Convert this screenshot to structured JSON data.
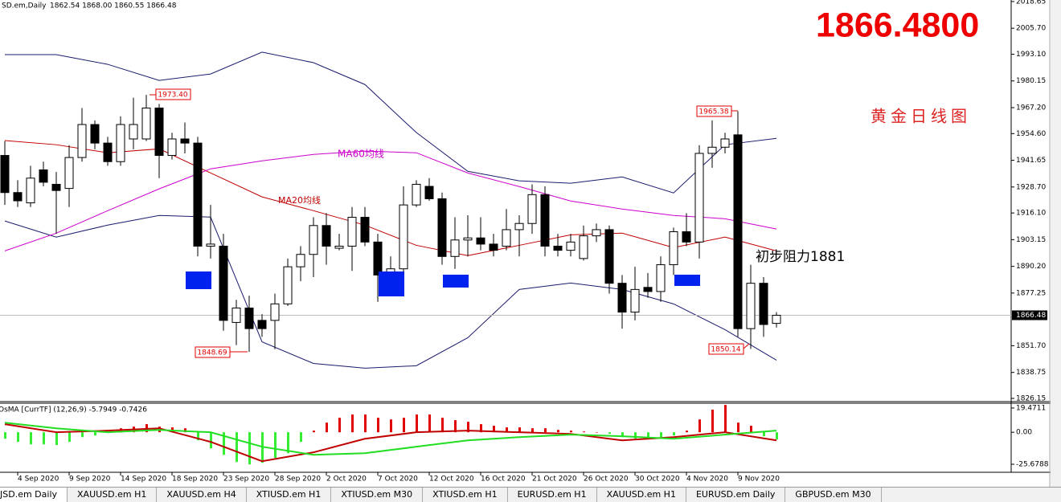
{
  "header": {
    "symbol": "SD.em,Daily",
    "ohlc": "1862.54 1868.00 1860.55 1866.48",
    "big_price": "1866.4800"
  },
  "texts": {
    "title_cn": "黄金日线图",
    "resistance": "初步阻力1881"
  },
  "chart_data": [
    {
      "type": "candlestick",
      "categories": [
        null,
        "4 Sep 2020",
        null,
        null,
        null,
        "9 Sep 2020",
        null,
        null,
        null,
        "14 Sep 2020",
        null,
        null,
        null,
        "18 Sep 2020",
        null,
        null,
        null,
        "23 Sep 2020",
        null,
        null,
        null,
        "28 Sep 2020",
        null,
        null,
        null,
        "2 Oct 2020",
        null,
        null,
        null,
        "7 Oct 2020",
        null,
        null,
        null,
        "12 Oct 2020",
        null,
        null,
        null,
        "16 Oct 2020",
        null,
        null,
        null,
        "21 Oct 2020",
        null,
        null,
        null,
        "26 Oct 2020",
        null,
        null,
        null,
        "30 Oct 2020",
        null,
        null,
        null,
        "4 Nov 2020",
        null,
        null,
        null,
        "9 Nov 2020",
        null,
        null,
        null
      ],
      "open": [
        1944,
        1926,
        1921,
        1937,
        1930,
        1928,
        1943,
        1959,
        1950,
        1941,
        1952,
        1952,
        1967,
        1944,
        1952,
        1950,
        1900,
        1900,
        1863,
        1870,
        1864,
        1864,
        1872,
        1890,
        1896,
        1910,
        1899,
        1900,
        1914,
        1902,
        1886,
        1889,
        1920,
        1929,
        1923,
        1895,
        1903,
        1904,
        1901,
        1900,
        1908,
        1911,
        1925,
        1900,
        1898,
        1894,
        1905,
        1908,
        1882,
        1868,
        1880,
        1878,
        1891,
        1907,
        1902,
        1945,
        1948,
        1954,
        1860,
        1882,
        1862.54
      ],
      "high": [
        1951,
        1932,
        1939,
        1941,
        1936,
        1949,
        1967,
        1961,
        1953,
        1963,
        1972,
        1973.4,
        1969,
        1955,
        1960,
        1953,
        1920,
        1906,
        1874,
        1876,
        1867,
        1877,
        1894,
        1900,
        1914,
        1916,
        1906,
        1919,
        1919,
        1906,
        1895,
        1929,
        1932,
        1933,
        1926,
        1914,
        1915,
        1914,
        1906,
        1918,
        1915,
        1930,
        1929,
        1906,
        1906,
        1910,
        1911,
        1910,
        1886,
        1890,
        1887,
        1895,
        1909,
        1916,
        1949,
        1961,
        1955,
        1965.38,
        1891,
        1885,
        1868
      ],
      "low": [
        1920,
        1919,
        1919,
        1929,
        1906,
        1919,
        1941,
        1947,
        1939,
        1939,
        1947,
        1951,
        1933,
        1942,
        1945,
        1895,
        1894,
        1859,
        1852,
        1848.69,
        1856,
        1850,
        1871,
        1883,
        1885,
        1891,
        1898,
        1888,
        1900,
        1873,
        1880,
        1884,
        1919,
        1922,
        1891,
        1889,
        1895,
        1898,
        1895,
        1898,
        1895,
        1906,
        1895,
        1895,
        1895,
        1893,
        1902,
        1877,
        1860,
        1864,
        1875,
        1873,
        1886,
        1900,
        1894,
        1938,
        1945,
        1856,
        1850.14,
        1856,
        1860.55
      ],
      "close": [
        1926,
        1922,
        1933,
        1931,
        1927,
        1943,
        1959,
        1950,
        1941,
        1959,
        1959,
        1967,
        1944,
        1952,
        1950,
        1900,
        1901,
        1864,
        1870,
        1860,
        1860,
        1872,
        1890,
        1896,
        1910,
        1900,
        1900,
        1914,
        1902,
        1886,
        1889,
        1920,
        1930,
        1923,
        1895,
        1903,
        1904,
        1901,
        1898,
        1908,
        1911,
        1925,
        1900,
        1898,
        1902,
        1905,
        1908,
        1882,
        1868,
        1879,
        1878,
        1891,
        1907,
        1902,
        1945,
        1948,
        1952,
        1860,
        1882,
        1862,
        1866.48
      ],
      "lines": [
        {
          "color": "#1a1a6e",
          "x": [
            0,
            4,
            8,
            12,
            16,
            20,
            24,
            28,
            32,
            36,
            40,
            44,
            48,
            52,
            56,
            60
          ],
          "values": [
            1992.9,
            1992.9,
            1988.2,
            1980.4,
            1983.5,
            1994.1,
            1989.0,
            1978.4,
            1955.1,
            1936.3,
            1931.7,
            1930.5,
            1933.6,
            1925.8,
            1949.2,
            1952.3
          ]
        },
        {
          "color": "#1a1a6e",
          "x": [
            0,
            4,
            8,
            12,
            16,
            20,
            24,
            28,
            32,
            36,
            40,
            44,
            48,
            52,
            56,
            60
          ],
          "values": [
            1912.2,
            1904.4,
            1910.2,
            1914.9,
            1914.1,
            1853.6,
            1843.1,
            1840.8,
            1842.0,
            1855.6,
            1879.0,
            1882.1,
            1879.0,
            1872.0,
            1859.5,
            1844.7
          ]
        },
        {
          "label": "MA20均线",
          "color": "#c00000",
          "x": [
            0,
            4,
            8,
            12,
            16,
            20,
            24,
            28,
            32,
            36,
            40,
            44,
            48,
            52,
            56,
            60
          ],
          "values": [
            1951.2,
            1949.2,
            1945.3,
            1947.2,
            1935.5,
            1923.9,
            1917.2,
            1910.2,
            1900.4,
            1895.4,
            1900.4,
            1905.5,
            1906.3,
            1899.3,
            1904.4,
            1897.7
          ]
        },
        {
          "label": "MA60均线",
          "color": "#cc00cc",
          "x": [
            0,
            4,
            8,
            12,
            16,
            20,
            24,
            28,
            32,
            36,
            40,
            44,
            48,
            52,
            56,
            60
          ],
          "values": [
            1897.7,
            1906.3,
            1917.2,
            1927.8,
            1937.5,
            1941.4,
            1944.5,
            1946.1,
            1945.3,
            1935.5,
            1928.9,
            1921.9,
            1918.0,
            1914.9,
            1913.3,
            1908.3
          ]
        }
      ],
      "annotations": [
        "1973.40",
        "1848.69",
        "1965.38",
        "1850.14"
      ],
      "last_price": 1866.48,
      "ylim": [
        1824.6,
        2019.4
      ],
      "yticks": [
        2018.65,
        {
          "value": 2005.7,
          "label": "2005.70"
        },
        {
          "value": 1993.1,
          "label": "1993.10"
        },
        1980.15,
        {
          "value": 1967.2,
          "label": "1967.20"
        },
        {
          "value": 1954.6,
          "label": "1954.60"
        },
        1941.65,
        {
          "value": 1928.7,
          "label": "1928.70"
        },
        {
          "value": 1916.1,
          "label": "1916.10"
        },
        1903.15,
        {
          "value": 1890.2,
          "label": "1890.20"
        },
        1877.25,
        {
          "value": 1851.7,
          "label": "1851.70"
        },
        1838.75,
        1826.15
      ]
    },
    {
      "type": "bar",
      "title": "OsMA [CurrTF] (12,26,9) -5.7949 -0.7426",
      "values": [
        -5.2,
        -7.7,
        -9.7,
        -9.7,
        -10.3,
        -7.7,
        -3.9,
        -2.6,
        -0.6,
        3.2,
        4.5,
        6.5,
        4.5,
        3.9,
        3.2,
        -6.5,
        -12.9,
        -18.1,
        -23.9,
        -25.8,
        -24.5,
        -20.6,
        -16.8,
        -7.7,
        1.3,
        7.7,
        11.6,
        14.2,
        14.2,
        11.6,
        10.3,
        11.6,
        14.2,
        14.2,
        11.6,
        9.7,
        8.4,
        6.5,
        5.2,
        3.9,
        3.9,
        3.2,
        3.2,
        1.9,
        1.3,
        0.6,
        0,
        -1.3,
        -3.9,
        -5.2,
        -5.2,
        -3.9,
        -2.6,
        1.3,
        10.3,
        18.1,
        21.9,
        7.7,
        5.2,
        -3.2,
        -5.8
      ],
      "up_color": "#e00000",
      "down_color": "#33ee33",
      "lines": [
        {
          "color": "#c00000",
          "x": [
            0,
            4,
            8,
            12,
            16,
            20,
            24,
            28,
            32,
            36,
            40,
            44,
            48,
            52,
            56,
            60
          ],
          "values": [
            6.5,
            0,
            1.3,
            3.2,
            -7.7,
            -23.2,
            -16.1,
            -5.2,
            0,
            1.3,
            0,
            -1.3,
            -6.5,
            -3.9,
            0,
            -6.5
          ]
        },
        {
          "color": "#22dd22",
          "x": [
            0,
            4,
            8,
            12,
            16,
            20,
            24,
            28,
            32,
            36,
            40,
            44,
            48,
            52,
            56,
            60
          ],
          "values": [
            7.7,
            3.2,
            0,
            1.9,
            0,
            -11.6,
            -18.1,
            -16.8,
            -11.6,
            -6.5,
            -3.9,
            -1.9,
            -3.2,
            -5.2,
            -1.9,
            1.3
          ]
        }
      ],
      "ylim": [
        -32.1,
        23.3
      ],
      "yticks": [
        19.4711,
        {
          "value": 0,
          "label": "0.00"
        },
        -25.6788
      ]
    }
  ],
  "tabs": [
    "JSD.em Daily",
    "XAUUSD.em H1",
    "XAUUSD.em H4",
    "XTIUSD.em H1",
    "XTIUSD.em M30",
    "XTIUSD.em H1",
    "EURUSD.em H1",
    "XAUUSD.em H1",
    "EURUSD.em Daily",
    "GBPUSD.em M30"
  ]
}
